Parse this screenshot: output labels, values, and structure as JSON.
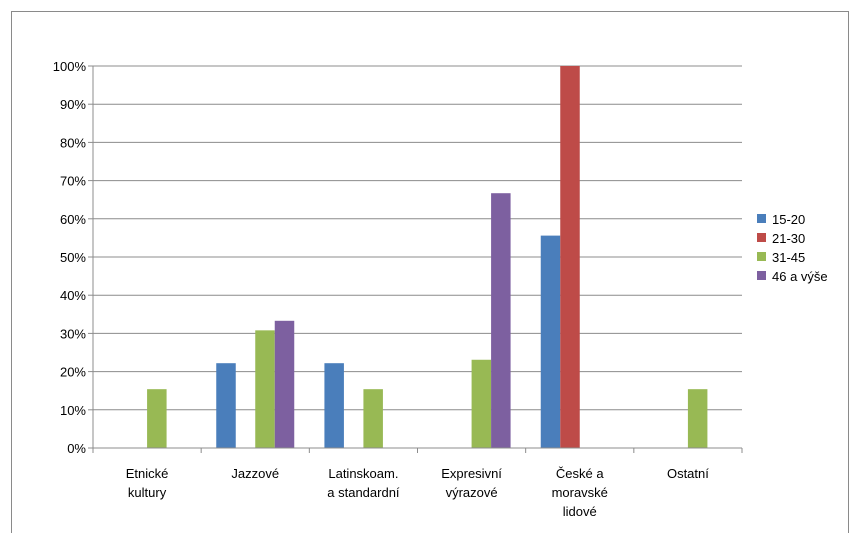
{
  "chart_data": {
    "type": "bar",
    "title": "",
    "xlabel": "",
    "ylabel": "",
    "ylim": [
      0,
      1
    ],
    "grid": true,
    "legend_position": "right",
    "y_ticks": [
      "0%",
      "10%",
      "20%",
      "30%",
      "40%",
      "50%",
      "60%",
      "70%",
      "80%",
      "90%",
      "100%"
    ],
    "categories": [
      [
        "Etnické",
        "kultury"
      ],
      [
        "Jazzové"
      ],
      [
        "Latinskoam.",
        "a standardní"
      ],
      [
        "Expresivní",
        "výrazové"
      ],
      [
        "České a",
        "moravské",
        "lidové"
      ],
      [
        "Ostatní"
      ]
    ],
    "series": [
      {
        "name": "15-20",
        "color": "#4a7ebb",
        "values": [
          0,
          0.222,
          0.222,
          0,
          0.556,
          0
        ]
      },
      {
        "name": "21-30",
        "color": "#be4b48",
        "values": [
          0,
          0,
          0,
          0,
          1.0,
          0
        ]
      },
      {
        "name": "31-45",
        "color": "#98b954",
        "values": [
          0.154,
          0.308,
          0.154,
          0.231,
          0,
          0.154
        ]
      },
      {
        "name": "46 a výše",
        "color": "#7d60a0",
        "values": [
          0,
          0.333,
          0,
          0.667,
          0,
          0
        ]
      }
    ]
  }
}
